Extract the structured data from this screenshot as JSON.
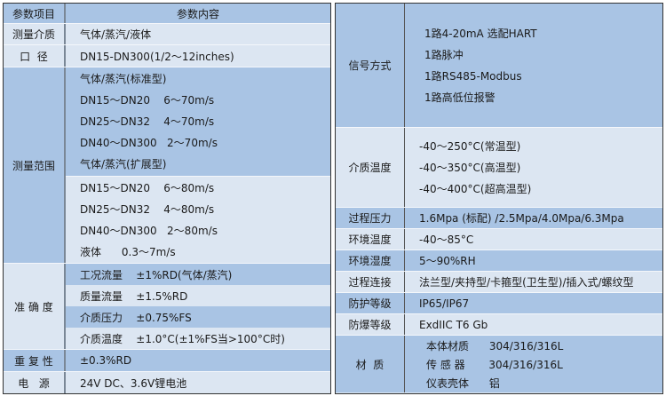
{
  "left": {
    "header": {
      "item": "参数项目",
      "content": "参数内容"
    },
    "medium": {
      "label": "测量介质",
      "value": "气体/蒸汽/液体"
    },
    "caliber": {
      "label": "口  径",
      "value": "DN15-DN300(1/2～12inches)"
    },
    "range": {
      "label": "测量范围",
      "lines": [
        "气体/蒸汽(标准型)",
        "DN15～DN20    6～70m/s",
        "DN25～DN32    4～70m/s",
        "DN40～DN300   2～70m/s",
        "气体/蒸汽(扩展型)",
        "DN15～DN20    6～80m/s",
        "DN25～DN32    4～80m/s",
        "DN40～DN300   2～80m/s",
        "液体      0.3～7m/s"
      ]
    },
    "accuracy": {
      "label": "准 确 度",
      "lines": [
        "工况流量    ±1%RD(气体/蒸汽)",
        "质量流量    ±1.5%RD",
        "介质压力    ±0.75%FS",
        "介质温度    ±1.0°C(±1%FS当>100°C时)"
      ]
    },
    "repeat": {
      "label": "重 复 性",
      "value": "±0.3%RD"
    },
    "power": {
      "label": "电   源",
      "value": "24V DC、3.6V锂电池"
    }
  },
  "right": {
    "signal": {
      "label": "信号方式",
      "lines": [
        "1路4-20mA 选配HART",
        "1路脉冲",
        "1路RS485-Modbus",
        "1路高低位报警"
      ]
    },
    "medium_temp": {
      "label": "介质温度",
      "lines": [
        "-40～250°C(常温型)",
        "-40～350°C(高温型)",
        "-40～400°C(超高温型)"
      ]
    },
    "pressure": {
      "label": "过程压力",
      "value": "1.6Mpa (标配) /2.5Mpa/4.0Mpa/6.3Mpa"
    },
    "env_temp": {
      "label": "环境温度",
      "value": "-40～85°C"
    },
    "humidity": {
      "label": "环境湿度",
      "value": "5～90%RH"
    },
    "connection": {
      "label": "过程连接",
      "value": "法兰型/夹持型/卡箍型(卫生型)/插入式/螺纹型"
    },
    "protection": {
      "label": "防护等级",
      "value": "IP65/IP67"
    },
    "explosion": {
      "label": "防爆等级",
      "value": "ExdIIC T6 Gb"
    },
    "material": {
      "label": "材  质",
      "lines": [
        "本体材质      304/316/316L",
        "传 感 器       304/316/316L",
        "仪表壳体      铝"
      ]
    }
  },
  "colors": {
    "dark": "#a9c4e4",
    "light": "#dce6f2"
  }
}
